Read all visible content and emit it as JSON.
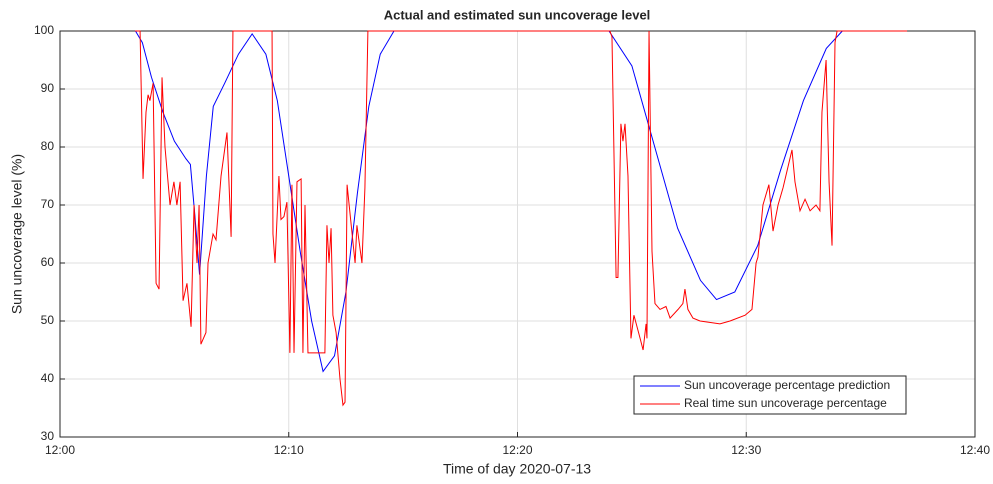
{
  "chart_data": {
    "type": "line",
    "title": "Actual and estimated sun uncoverage level",
    "xlabel": "Time of day 2020-07-13",
    "ylabel": "Sun uncoverage level (%)",
    "xlim": [
      0,
      40
    ],
    "xticks": [
      {
        "value": 0,
        "label": "12:00"
      },
      {
        "value": 10,
        "label": "12:10"
      },
      {
        "value": 20,
        "label": "12:20"
      },
      {
        "value": 30,
        "label": "12:30"
      },
      {
        "value": 40,
        "label": "12:40"
      }
    ],
    "ylim": [
      30,
      100
    ],
    "yticks": [
      30,
      40,
      50,
      60,
      70,
      80,
      90,
      100
    ],
    "grid": true,
    "legend": "lower right",
    "series": [
      {
        "name": "Sun uncoverage percentage prediction",
        "color": "#0000ff",
        "x": [
          3.3,
          3.6,
          4.0,
          4.5,
          5.0,
          5.5,
          5.7,
          5.9,
          6.1,
          6.4,
          6.7,
          7.2,
          7.8,
          8.4,
          9.0,
          9.5,
          10.0,
          10.5,
          11.0,
          11.5,
          12.0,
          12.5,
          13.0,
          13.5,
          14.0,
          14.6,
          24.0,
          25.0,
          26.0,
          27.0,
          28.0,
          28.7,
          29.5,
          30.5,
          31.5,
          32.5,
          33.5,
          34.2
        ],
        "values": [
          100,
          98,
          92,
          86,
          81,
          78,
          77,
          68,
          58,
          75,
          87,
          91,
          96,
          99.5,
          96,
          88,
          75,
          62,
          50,
          41.3,
          44,
          55,
          72,
          87,
          96,
          100,
          100,
          94,
          80,
          66,
          57,
          53.7,
          55,
          63,
          76,
          88,
          97,
          100
        ]
      },
      {
        "name": "Real time sun uncoverage percentage",
        "color": "#ff0000",
        "x": [
          3.28,
          3.5,
          3.63,
          3.76,
          3.85,
          3.93,
          4.07,
          4.2,
          4.33,
          4.46,
          4.59,
          4.81,
          4.98,
          5.11,
          5.25,
          5.38,
          5.55,
          5.73,
          5.86,
          5.99,
          6.08,
          6.16,
          6.38,
          6.47,
          6.69,
          6.82,
          7.04,
          7.3,
          7.48,
          7.56,
          9.27,
          9.31,
          9.4,
          9.57,
          9.66,
          9.79,
          9.92,
          10.05,
          10.14,
          10.23,
          10.36,
          10.54,
          10.62,
          10.71,
          10.84,
          11.58,
          11.67,
          11.76,
          11.85,
          11.93,
          12.07,
          12.24,
          12.37,
          12.46,
          12.55,
          12.77,
          12.9,
          12.98,
          13.2,
          13.33,
          13.46,
          24.04,
          24.13,
          24.31,
          24.39,
          24.52,
          24.61,
          24.7,
          24.83,
          24.96,
          25.09,
          25.36,
          25.49,
          25.62,
          25.66,
          25.75,
          25.88,
          26.01,
          26.23,
          26.49,
          26.67,
          27.02,
          27.23,
          27.32,
          27.45,
          27.67,
          27.98,
          28.85,
          29.29,
          29.95,
          30.25,
          30.43,
          30.51,
          30.73,
          30.99,
          31.17,
          31.39,
          31.61,
          32.0,
          32.13,
          32.35,
          32.57,
          32.79,
          33.05,
          33.22,
          33.31,
          33.49,
          33.62,
          33.75,
          33.88,
          33.97,
          37.03
        ],
        "values": [
          100,
          100,
          74.5,
          86,
          89,
          88,
          91,
          56.5,
          55.5,
          92,
          80,
          70,
          74,
          70,
          74,
          53.5,
          56.5,
          49,
          70,
          60,
          70,
          46,
          48,
          60,
          65,
          64,
          75,
          82.5,
          64.5,
          100,
          100,
          65,
          60,
          75,
          67.5,
          68,
          70.5,
          44.5,
          73.5,
          44.5,
          74,
          74.5,
          44.5,
          70,
          44.5,
          44.5,
          66.5,
          60,
          66,
          51,
          48,
          40,
          35.5,
          36,
          73.5,
          65,
          60,
          66.5,
          60,
          73,
          100,
          100,
          99,
          57.5,
          57.5,
          84,
          81,
          84,
          75,
          47,
          51,
          47,
          45,
          49.5,
          47,
          100,
          62,
          53,
          52,
          52.5,
          50.5,
          52,
          53,
          55.5,
          52,
          50.5,
          50,
          49.5,
          50,
          51,
          52,
          60,
          61,
          70,
          73.5,
          65.5,
          70,
          73,
          79.5,
          74,
          69,
          71,
          69,
          70,
          69,
          86,
          95,
          74,
          63,
          98,
          100,
          100
        ]
      }
    ]
  }
}
